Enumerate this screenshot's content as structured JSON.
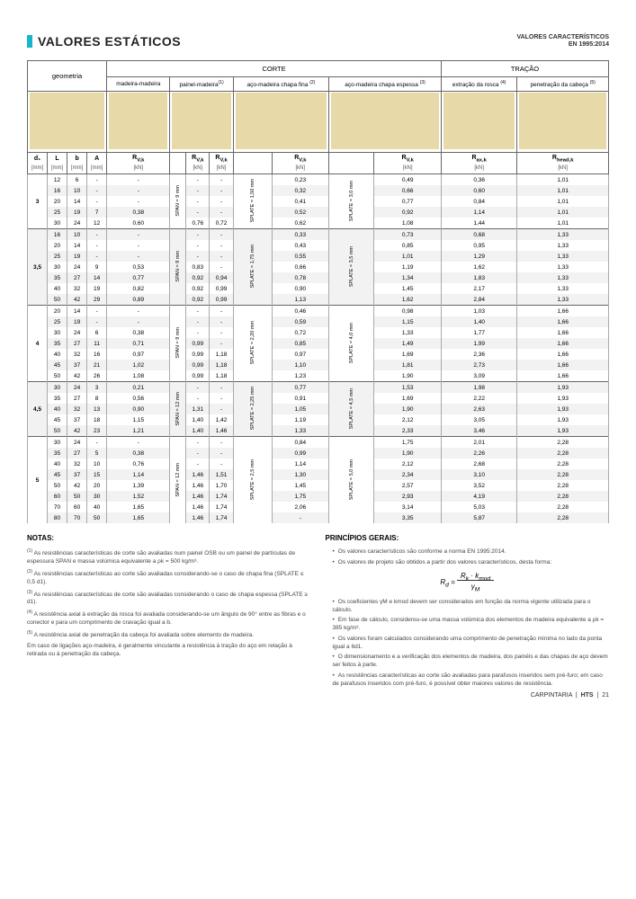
{
  "header": {
    "title": "VALORES ESTÁTICOS",
    "subtitle_l1": "VALORES CARACTERÍSTICOS",
    "subtitle_l2": "EN 1995:2014"
  },
  "groups": {
    "corte": "CORTE",
    "tracao": "TRAÇÃO"
  },
  "section_labels": {
    "geometria": "geometria",
    "mad_mad": "madeira-madeira",
    "pai_mad": "painel-madeira",
    "aco_fina": "aço-madeira chapa fina",
    "aco_esp": "aço-madeira chapa espessa",
    "ext_rosca": "extração da rosca",
    "pen_cabeca": "penetração da cabeça",
    "sup1": "(1)",
    "sup2": "(2)",
    "sup3": "(3)",
    "sup4": "(4)",
    "sup5": "(5)"
  },
  "units": {
    "d1": "d₁",
    "L": "L",
    "b": "b",
    "A": "A",
    "rvk": "R",
    "rvk_sub": "V,k",
    "rax": "R",
    "rax_sub": "ax,k",
    "rhead": "R",
    "rhead_sub": "head,k",
    "mm": "[mm]",
    "kn": "[kN]"
  },
  "span_labels": {
    "span9": "SPAN = 9 mm",
    "span12": "SPAN = 12 mm",
    "span15": "SPAN = 15 mm",
    "plate15": "SPLATE = 1,50 mm",
    "plate175": "SPLATE = 1,75 mm",
    "plate20": "SPLATE = 2,20 mm",
    "plate225": "SPLATE = 2,25 mm",
    "plate25": "SPLATE = 2,5 mm",
    "plate30": "SPLATE = 3,0 mm",
    "plate35": "SPLATE = 3,5 mm",
    "plate40": "SPLATE = 4,0 mm",
    "plate45": "SPLATE = 4,5 mm",
    "plate50": "SPLATE = 5,0 mm"
  },
  "rows": [
    {
      "d1": "3",
      "L": "12",
      "b": "6",
      "A": "-",
      "rv1": "-",
      "rv2": "-",
      "rv3": "-",
      "rv4": "0,23",
      "rv5": "0,49",
      "rax": "0,36",
      "rh": "1,01",
      "span": "span9|span12",
      "plate": "plate15",
      "plate2": "plate30",
      "first": true
    },
    {
      "d1": "",
      "L": "16",
      "b": "10",
      "A": "-",
      "rv1": "-",
      "rv2": "-",
      "rv3": "-",
      "rv4": "0,32",
      "rv5": "0,66",
      "rax": "0,60",
      "rh": "1,01"
    },
    {
      "d1": "",
      "L": "20",
      "b": "14",
      "A": "-",
      "rv1": "-",
      "rv2": "-",
      "rv3": "-",
      "rv4": "0,41",
      "rv5": "0,77",
      "rax": "0,84",
      "rh": "1,01"
    },
    {
      "d1": "",
      "L": "25",
      "b": "19",
      "A": "7",
      "rv1": "0,38",
      "rv2": "-",
      "rv3": "-",
      "rv4": "0,52",
      "rv5": "0,92",
      "rax": "1,14",
      "rh": "1,01"
    },
    {
      "d1": "",
      "L": "30",
      "b": "24",
      "A": "12",
      "rv1": "0,60",
      "rv2": "0,76",
      "rv3": "0,72",
      "rv4": "0,62",
      "rv5": "1,08",
      "rax": "1,44",
      "rh": "1,01"
    },
    {
      "d1": "3,5",
      "L": "16",
      "b": "10",
      "A": "-",
      "rv1": "-",
      "rv2": "-",
      "rv3": "-",
      "rv4": "0,33",
      "rv5": "0,73",
      "rax": "0,68",
      "rh": "1,33",
      "span": "span9|span12",
      "plate": "plate175",
      "plate2": "plate35",
      "first": true
    },
    {
      "d1": "",
      "L": "20",
      "b": "14",
      "A": "-",
      "rv1": "-",
      "rv2": "-",
      "rv3": "-",
      "rv4": "0,43",
      "rv5": "0,85",
      "rax": "0,95",
      "rh": "1,33"
    },
    {
      "d1": "",
      "L": "25",
      "b": "19",
      "A": "-",
      "rv1": "-",
      "rv2": "-",
      "rv3": "-",
      "rv4": "0,55",
      "rv5": "1,01",
      "rax": "1,29",
      "rh": "1,33"
    },
    {
      "d1": "",
      "L": "30",
      "b": "24",
      "A": "9",
      "rv1": "0,53",
      "rv2": "0,83",
      "rv3": "-",
      "rv4": "0,66",
      "rv5": "1,19",
      "rax": "1,62",
      "rh": "1,33"
    },
    {
      "d1": "",
      "L": "35",
      "b": "27",
      "A": "14",
      "rv1": "0,77",
      "rv2": "0,92",
      "rv3": "0,94",
      "rv4": "0,78",
      "rv5": "1,34",
      "rax": "1,83",
      "rh": "1,33"
    },
    {
      "d1": "",
      "L": "40",
      "b": "32",
      "A": "19",
      "rv1": "0,82",
      "rv2": "0,92",
      "rv3": "0,99",
      "rv4": "0,90",
      "rv5": "1,45",
      "rax": "2,17",
      "rh": "1,33"
    },
    {
      "d1": "",
      "L": "50",
      "b": "42",
      "A": "29",
      "rv1": "0,89",
      "rv2": "0,92",
      "rv3": "0,99",
      "rv4": "1,13",
      "rv5": "1,62",
      "rax": "2,84",
      "rh": "1,33"
    },
    {
      "d1": "4",
      "L": "20",
      "b": "14",
      "A": "-",
      "rv1": "-",
      "rv2": "-",
      "rv3": "-",
      "rv4": "0,46",
      "rv5": "0,98",
      "rax": "1,03",
      "rh": "1,66",
      "span": "span9|span12",
      "plate": "plate20",
      "plate2": "plate40",
      "first": true
    },
    {
      "d1": "",
      "L": "25",
      "b": "19",
      "A": "-",
      "rv1": "-",
      "rv2": "-",
      "rv3": "-",
      "rv4": "0,59",
      "rv5": "1,15",
      "rax": "1,40",
      "rh": "1,66"
    },
    {
      "d1": "",
      "L": "30",
      "b": "24",
      "A": "6",
      "rv1": "0,38",
      "rv2": "-",
      "rv3": "-",
      "rv4": "0,72",
      "rv5": "1,33",
      "rax": "1,77",
      "rh": "1,66"
    },
    {
      "d1": "",
      "L": "35",
      "b": "27",
      "A": "11",
      "rv1": "0,71",
      "rv2": "0,99",
      "rv3": "-",
      "rv4": "0,85",
      "rv5": "1,49",
      "rax": "1,99",
      "rh": "1,66"
    },
    {
      "d1": "",
      "L": "40",
      "b": "32",
      "A": "16",
      "rv1": "0,97",
      "rv2": "0,99",
      "rv3": "1,18",
      "rv4": "0,97",
      "rv5": "1,69",
      "rax": "2,36",
      "rh": "1,66"
    },
    {
      "d1": "",
      "L": "45",
      "b": "37",
      "A": "21",
      "rv1": "1,02",
      "rv2": "0,99",
      "rv3": "1,18",
      "rv4": "1,10",
      "rv5": "1,81",
      "rax": "2,73",
      "rh": "1,66"
    },
    {
      "d1": "",
      "L": "50",
      "b": "42",
      "A": "26",
      "rv1": "1,08",
      "rv2": "0,99",
      "rv3": "1,18",
      "rv4": "1,23",
      "rv5": "1,90",
      "rax": "3,09",
      "rh": "1,66"
    },
    {
      "d1": "4,5",
      "L": "30",
      "b": "24",
      "A": "3",
      "rv1": "0,21",
      "rv2": "-",
      "rv3": "-",
      "rv4": "0,77",
      "rv5": "1,53",
      "rax": "1,98",
      "rh": "1,93",
      "span": "span12|span15",
      "plate": "plate225",
      "plate2": "plate45",
      "first": true
    },
    {
      "d1": "",
      "L": "35",
      "b": "27",
      "A": "8",
      "rv1": "0,56",
      "rv2": "-",
      "rv3": "-",
      "rv4": "0,91",
      "rv5": "1,69",
      "rax": "2,22",
      "rh": "1,93"
    },
    {
      "d1": "",
      "L": "40",
      "b": "32",
      "A": "13",
      "rv1": "0,90",
      "rv2": "1,31",
      "rv3": "-",
      "rv4": "1,05",
      "rv5": "1,90",
      "rax": "2,63",
      "rh": "1,93"
    },
    {
      "d1": "",
      "L": "45",
      "b": "37",
      "A": "18",
      "rv1": "1,15",
      "rv2": "1,40",
      "rv3": "1,42",
      "rv4": "1,19",
      "rv5": "2,12",
      "rax": "3,05",
      "rh": "1,93"
    },
    {
      "d1": "",
      "L": "50",
      "b": "42",
      "A": "23",
      "rv1": "1,21",
      "rv2": "1,40",
      "rv3": "1,46",
      "rv4": "1,33",
      "rv5": "2,33",
      "rax": "3,46",
      "rh": "1,93"
    },
    {
      "d1": "5",
      "L": "30",
      "b": "24",
      "A": "-",
      "rv1": "-",
      "rv2": "-",
      "rv3": "-",
      "rv4": "0,84",
      "rv5": "1,75",
      "rax": "2,01",
      "rh": "2,28",
      "span": "span12|span15",
      "plate": "plate25",
      "plate2": "plate50",
      "first": true
    },
    {
      "d1": "",
      "L": "35",
      "b": "27",
      "A": "5",
      "rv1": "0,38",
      "rv2": "-",
      "rv3": "-",
      "rv4": "0,99",
      "rv5": "1,90",
      "rax": "2,26",
      "rh": "2,28"
    },
    {
      "d1": "",
      "L": "40",
      "b": "32",
      "A": "10",
      "rv1": "0,76",
      "rv2": "-",
      "rv3": "-",
      "rv4": "1,14",
      "rv5": "2,12",
      "rax": "2,68",
      "rh": "2,28"
    },
    {
      "d1": "",
      "L": "45",
      "b": "37",
      "A": "15",
      "rv1": "1,14",
      "rv2": "1,46",
      "rv3": "1,51",
      "rv4": "1,30",
      "rv5": "2,34",
      "rax": "3,10",
      "rh": "2,28"
    },
    {
      "d1": "",
      "L": "50",
      "b": "42",
      "A": "20",
      "rv1": "1,39",
      "rv2": "1,46",
      "rv3": "1,70",
      "rv4": "1,45",
      "rv5": "2,57",
      "rax": "3,52",
      "rh": "2,28"
    },
    {
      "d1": "",
      "L": "60",
      "b": "50",
      "A": "30",
      "rv1": "1,52",
      "rv2": "1,46",
      "rv3": "1,74",
      "rv4": "1,75",
      "rv5": "2,93",
      "rax": "4,19",
      "rh": "2,28"
    },
    {
      "d1": "",
      "L": "70",
      "b": "60",
      "A": "40",
      "rv1": "1,65",
      "rv2": "1,46",
      "rv3": "1,74",
      "rv4": "2,06",
      "rv5": "3,14",
      "rax": "5,03",
      "rh": "2,28"
    },
    {
      "d1": "",
      "L": "80",
      "b": "70",
      "A": "50",
      "rv1": "1,65",
      "rv2": "1,46",
      "rv3": "1,74",
      "rv4": "-",
      "rv5": "3,35",
      "rax": "5,87",
      "rh": "2,28"
    }
  ],
  "notes": {
    "header": "NOTAS:",
    "n1": "As resistências características de corte são avaliadas num painel OSB ou um painel de partículas de espessura SPAN e massa volúmica equivalente a ρk = 500 kg/m³.",
    "n2": "As resistências características ao corte são avaliadas considerando-se o caso de chapa fina (SPLATE ≤ 0,5 d1).",
    "n3": "As resistências características de corte são avaliadas considerando o caso de chapa espessa (SPLATE ≥ d1).",
    "n4": "A resistência axial à extração da rosca foi avaliada considerando-se um ângulo de 90° entre as fibras e o conector e para um comprimento de cravação igual a b.",
    "n5": "A resistência axial de penetração da cabeça foi avaliada sobre elemento de madeira.",
    "nend": "Em caso de ligações aço-madeira, é geralmente vinculante a resistência à tração do aço em relação à retirada ou à penetração da cabeça."
  },
  "principios": {
    "header": "PRINCÍPIOS GERAIS:",
    "p1": "Os valores característicos são conforme a norma EN 1995:2014.",
    "p2": "Os valores de projeto são obtidos a partir dos valores característicos, desta forma:",
    "formula": "Rd = (Rk · kmod) / γM",
    "p3": "Os coeficientes γM e kmod devem ser considerados em função da norma vigente utilizada para o cálculo.",
    "p4": "Em fase de cálculo, considerou-se uma massa volúmica dos elementos de madeira equivalente a ρk = 385 kg/m³.",
    "p5": "Os valores foram calculados considerando uma comprimento de penetração mínima no lado da ponta igual a 6d1.",
    "p6": "O dimensionamento e a verificação dos elementos de madeira, dos painéis e das chapas de aço devem ser feitos à parte.",
    "p7": "As resistências características ao corte são avaliadas para parafusos inseridos sem pré-furo; em caso de parafusos inseridos com pré-furo, é possível obter maiores valores de resistência."
  },
  "footer": {
    "l": "CARPINTARIA",
    "m": "HTS",
    "r": "21"
  },
  "colors": {
    "teal": "#16b5c9",
    "wood": "#e8d9a8",
    "grey": "#f2f2f2"
  }
}
